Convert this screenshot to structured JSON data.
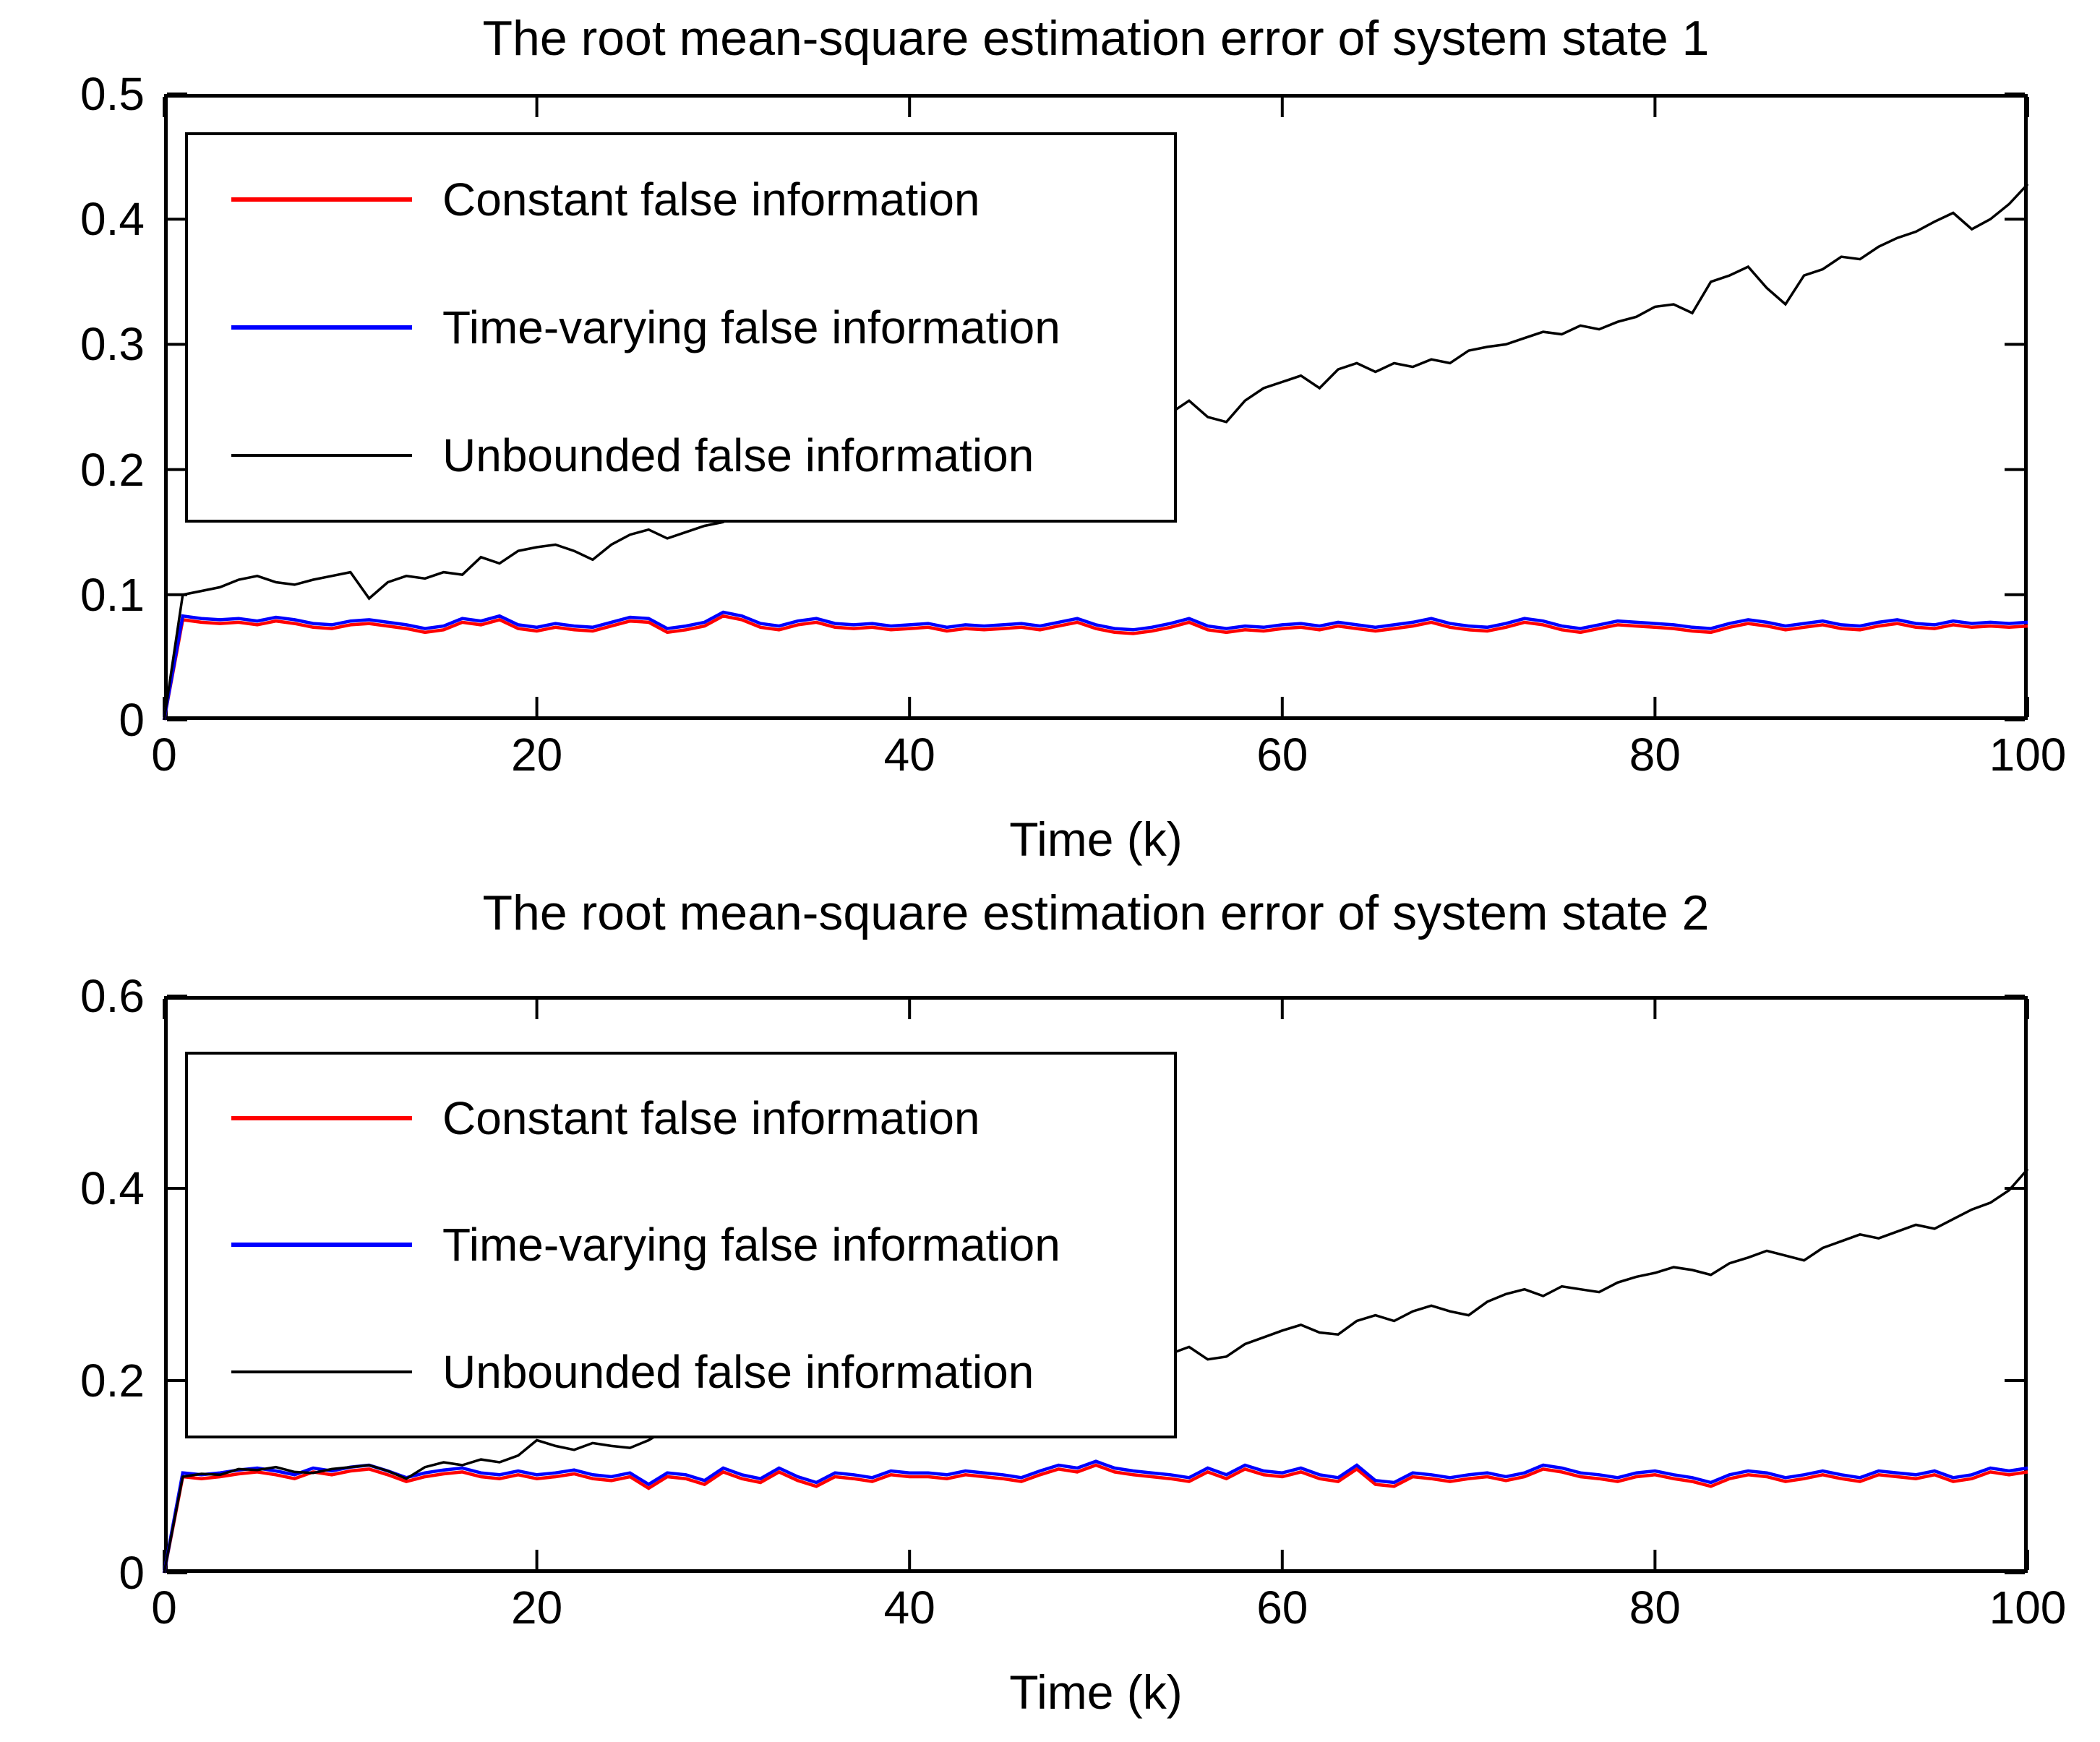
{
  "figure": {
    "background": "#ffffff",
    "text_color": "#000000"
  },
  "chart_data": [
    {
      "type": "line",
      "title": "The root mean-square estimation error of system state 1",
      "xlabel": "Time (k)",
      "ylabel": "",
      "xlim": [
        0,
        100
      ],
      "ylim": [
        0,
        0.5
      ],
      "x_ticks": [
        0,
        20,
        40,
        60,
        80,
        100
      ],
      "y_ticks": [
        0,
        0.1,
        0.2,
        0.3,
        0.4,
        0.5
      ],
      "y_tick_labels": [
        "0",
        "0.1",
        "0.2",
        "0.3",
        "0.4",
        "0.5"
      ],
      "grid": false,
      "legend_position": "upper-left-inside",
      "x_start": 0,
      "x_step": 1,
      "series": [
        {
          "name": "Constant false information",
          "color": "#ff0000",
          "values": [
            0,
            0.08,
            0.078,
            0.077,
            0.078,
            0.076,
            0.079,
            0.077,
            0.074,
            0.073,
            0.076,
            0.077,
            0.075,
            0.073,
            0.07,
            0.072,
            0.078,
            0.076,
            0.08,
            0.073,
            0.071,
            0.074,
            0.072,
            0.071,
            0.075,
            0.079,
            0.078,
            0.07,
            0.072,
            0.075,
            0.083,
            0.08,
            0.074,
            0.072,
            0.076,
            0.078,
            0.074,
            0.073,
            0.074,
            0.072,
            0.073,
            0.074,
            0.071,
            0.073,
            0.072,
            0.073,
            0.074,
            0.072,
            0.075,
            0.078,
            0.073,
            0.07,
            0.069,
            0.071,
            0.074,
            0.078,
            0.072,
            0.07,
            0.072,
            0.071,
            0.073,
            0.074,
            0.072,
            0.075,
            0.073,
            0.071,
            0.073,
            0.075,
            0.078,
            0.074,
            0.072,
            0.071,
            0.074,
            0.078,
            0.076,
            0.072,
            0.07,
            0.073,
            0.076,
            0.075,
            0.074,
            0.073,
            0.071,
            0.07,
            0.074,
            0.077,
            0.075,
            0.072,
            0.074,
            0.076,
            0.073,
            0.072,
            0.075,
            0.077,
            0.074,
            0.073,
            0.076,
            0.074,
            0.075,
            0.074,
            0.075
          ]
        },
        {
          "name": "Time-varying false information",
          "color": "#0000ff",
          "values": [
            0,
            0.083,
            0.081,
            0.08,
            0.081,
            0.079,
            0.082,
            0.08,
            0.077,
            0.076,
            0.079,
            0.08,
            0.078,
            0.076,
            0.073,
            0.075,
            0.081,
            0.079,
            0.083,
            0.076,
            0.074,
            0.077,
            0.075,
            0.074,
            0.078,
            0.082,
            0.081,
            0.073,
            0.075,
            0.078,
            0.086,
            0.083,
            0.077,
            0.075,
            0.079,
            0.081,
            0.077,
            0.076,
            0.077,
            0.075,
            0.076,
            0.077,
            0.074,
            0.076,
            0.075,
            0.076,
            0.077,
            0.075,
            0.078,
            0.081,
            0.076,
            0.073,
            0.072,
            0.074,
            0.077,
            0.081,
            0.075,
            0.073,
            0.075,
            0.074,
            0.076,
            0.077,
            0.075,
            0.078,
            0.076,
            0.074,
            0.076,
            0.078,
            0.081,
            0.077,
            0.075,
            0.074,
            0.077,
            0.081,
            0.079,
            0.075,
            0.073,
            0.076,
            0.079,
            0.078,
            0.077,
            0.076,
            0.074,
            0.073,
            0.077,
            0.08,
            0.078,
            0.075,
            0.077,
            0.079,
            0.076,
            0.075,
            0.078,
            0.08,
            0.077,
            0.076,
            0.079,
            0.077,
            0.078,
            0.077,
            0.078
          ]
        },
        {
          "name": "Unbounded false information",
          "color": "#000000",
          "values": [
            0,
            0.1,
            0.103,
            0.106,
            0.112,
            0.115,
            0.11,
            0.108,
            0.112,
            0.115,
            0.118,
            0.097,
            0.11,
            0.115,
            0.113,
            0.118,
            0.116,
            0.13,
            0.125,
            0.135,
            0.138,
            0.14,
            0.135,
            0.128,
            0.14,
            0.148,
            0.152,
            0.145,
            0.15,
            0.155,
            0.158,
            0.178,
            0.165,
            0.16,
            0.17,
            0.178,
            0.175,
            0.18,
            0.172,
            0.175,
            0.205,
            0.212,
            0.205,
            0.208,
            0.21,
            0.212,
            0.215,
            0.218,
            0.222,
            0.235,
            0.228,
            0.222,
            0.238,
            0.232,
            0.245,
            0.255,
            0.242,
            0.238,
            0.255,
            0.265,
            0.27,
            0.275,
            0.265,
            0.28,
            0.285,
            0.278,
            0.285,
            0.282,
            0.288,
            0.285,
            0.295,
            0.298,
            0.3,
            0.305,
            0.31,
            0.308,
            0.315,
            0.312,
            0.318,
            0.322,
            0.33,
            0.332,
            0.325,
            0.35,
            0.355,
            0.362,
            0.345,
            0.332,
            0.355,
            0.36,
            0.37,
            0.368,
            0.378,
            0.385,
            0.39,
            0.398,
            0.405,
            0.392,
            0.4,
            0.412,
            0.428
          ]
        }
      ]
    },
    {
      "type": "line",
      "title": "The root mean-square estimation error of system state 2",
      "xlabel": "Time (k)",
      "ylabel": "",
      "xlim": [
        0,
        100
      ],
      "ylim": [
        0,
        0.6
      ],
      "x_ticks": [
        0,
        20,
        40,
        60,
        80,
        100
      ],
      "y_ticks": [
        0,
        0.2,
        0.4,
        0.6
      ],
      "y_tick_labels": [
        "0",
        "0.2",
        "0.4",
        "0.6"
      ],
      "grid": false,
      "legend_position": "upper-left-inside",
      "x_start": 0,
      "x_step": 1,
      "series": [
        {
          "name": "Constant false information",
          "color": "#ff0000",
          "values": [
            0,
            0.1,
            0.098,
            0.1,
            0.103,
            0.105,
            0.102,
            0.098,
            0.105,
            0.102,
            0.106,
            0.108,
            0.102,
            0.095,
            0.1,
            0.103,
            0.105,
            0.1,
            0.098,
            0.102,
            0.098,
            0.1,
            0.103,
            0.098,
            0.096,
            0.1,
            0.088,
            0.1,
            0.098,
            0.092,
            0.105,
            0.098,
            0.094,
            0.105,
            0.096,
            0.09,
            0.1,
            0.098,
            0.095,
            0.102,
            0.1,
            0.1,
            0.098,
            0.102,
            0.1,
            0.098,
            0.095,
            0.102,
            0.108,
            0.105,
            0.112,
            0.105,
            0.102,
            0.1,
            0.098,
            0.095,
            0.105,
            0.098,
            0.108,
            0.102,
            0.1,
            0.105,
            0.098,
            0.095,
            0.108,
            0.092,
            0.09,
            0.1,
            0.098,
            0.095,
            0.098,
            0.1,
            0.096,
            0.1,
            0.108,
            0.105,
            0.1,
            0.098,
            0.095,
            0.1,
            0.102,
            0.098,
            0.095,
            0.09,
            0.098,
            0.102,
            0.1,
            0.095,
            0.098,
            0.102,
            0.098,
            0.095,
            0.102,
            0.1,
            0.098,
            0.102,
            0.095,
            0.098,
            0.105,
            0.102,
            0.105
          ]
        },
        {
          "name": "Time-varying false information",
          "color": "#0000ff",
          "values": [
            0,
            0.104,
            0.102,
            0.104,
            0.107,
            0.109,
            0.106,
            0.102,
            0.109,
            0.106,
            0.11,
            0.112,
            0.106,
            0.099,
            0.104,
            0.107,
            0.109,
            0.104,
            0.102,
            0.106,
            0.102,
            0.104,
            0.107,
            0.102,
            0.1,
            0.104,
            0.092,
            0.104,
            0.102,
            0.096,
            0.109,
            0.102,
            0.098,
            0.109,
            0.1,
            0.094,
            0.104,
            0.102,
            0.099,
            0.106,
            0.104,
            0.104,
            0.102,
            0.106,
            0.104,
            0.102,
            0.099,
            0.106,
            0.112,
            0.109,
            0.116,
            0.109,
            0.106,
            0.104,
            0.102,
            0.099,
            0.109,
            0.102,
            0.112,
            0.106,
            0.104,
            0.109,
            0.102,
            0.099,
            0.112,
            0.096,
            0.094,
            0.104,
            0.102,
            0.099,
            0.102,
            0.104,
            0.1,
            0.104,
            0.112,
            0.109,
            0.104,
            0.102,
            0.099,
            0.104,
            0.106,
            0.102,
            0.099,
            0.094,
            0.102,
            0.106,
            0.104,
            0.099,
            0.102,
            0.106,
            0.102,
            0.099,
            0.106,
            0.104,
            0.102,
            0.106,
            0.099,
            0.102,
            0.109,
            0.106,
            0.109
          ]
        },
        {
          "name": "Unbounded false information",
          "color": "#000000",
          "values": [
            0,
            0.1,
            0.103,
            0.102,
            0.108,
            0.107,
            0.11,
            0.105,
            0.104,
            0.108,
            0.11,
            0.112,
            0.106,
            0.098,
            0.11,
            0.115,
            0.112,
            0.118,
            0.115,
            0.122,
            0.138,
            0.132,
            0.128,
            0.135,
            0.132,
            0.13,
            0.138,
            0.15,
            0.148,
            0.145,
            0.16,
            0.168,
            0.155,
            0.158,
            0.165,
            0.162,
            0.17,
            0.168,
            0.162,
            0.172,
            0.195,
            0.2,
            0.192,
            0.198,
            0.202,
            0.205,
            0.198,
            0.202,
            0.21,
            0.215,
            0.21,
            0.218,
            0.225,
            0.218,
            0.228,
            0.235,
            0.222,
            0.225,
            0.238,
            0.245,
            0.252,
            0.258,
            0.25,
            0.248,
            0.262,
            0.268,
            0.262,
            0.272,
            0.278,
            0.272,
            0.268,
            0.282,
            0.29,
            0.295,
            0.288,
            0.298,
            0.295,
            0.292,
            0.302,
            0.308,
            0.312,
            0.318,
            0.315,
            0.31,
            0.322,
            0.328,
            0.335,
            0.33,
            0.325,
            0.338,
            0.345,
            0.352,
            0.348,
            0.355,
            0.362,
            0.358,
            0.368,
            0.378,
            0.385,
            0.398,
            0.42
          ]
        }
      ]
    }
  ]
}
